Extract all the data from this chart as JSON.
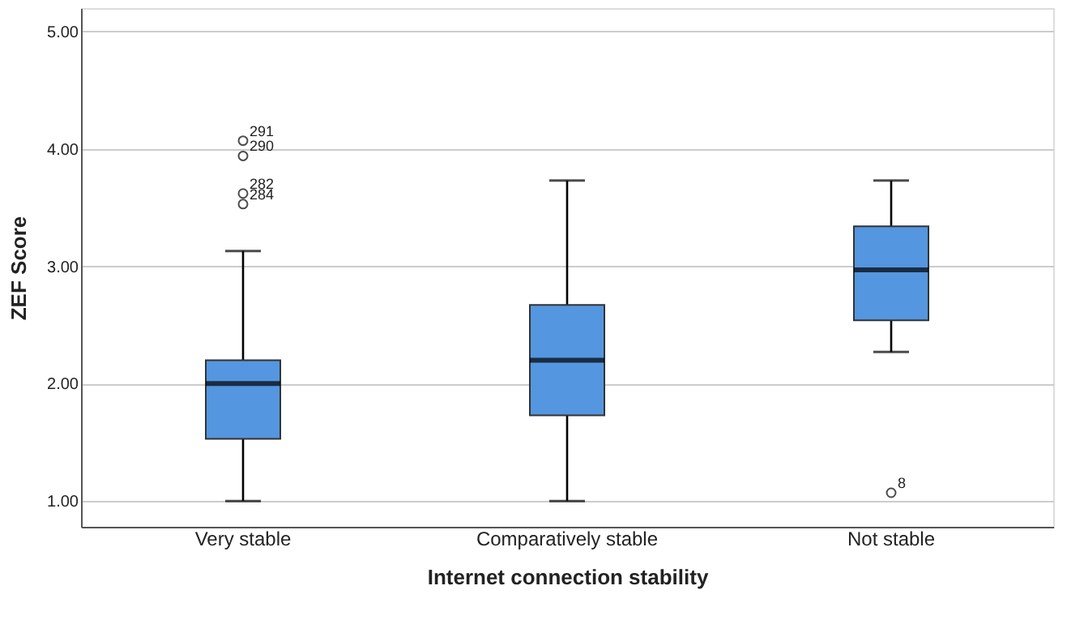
{
  "chart_data": {
    "type": "box",
    "xlabel": "Internet connection stability",
    "ylabel": "ZEF Score",
    "categories": [
      "Very stable",
      "Comparatively stable",
      "Not stable"
    ],
    "color": "#5596e0",
    "boxes": [
      {
        "low": 1.0,
        "q1": 1.53,
        "median": 2.0,
        "q3": 2.2,
        "high": 3.13,
        "outliers": [
          4.07,
          3.94,
          3.62,
          3.53
        ]
      },
      {
        "low": 1.0,
        "q1": 1.73,
        "median": 2.2,
        "q3": 2.67,
        "high": 3.73
      },
      {
        "low": 2.27,
        "q1": 2.54,
        "median": 2.97,
        "q3": 3.34,
        "high": 3.73,
        "outliers": [
          1.07
        ]
      }
    ],
    "annotations": [
      "291",
      "290",
      "282",
      "284",
      "8"
    ],
    "ylim": [
      0.78,
      5.2
    ],
    "yticks": [
      {
        "value": 1,
        "label": "1.00"
      },
      {
        "value": 2,
        "label": "2.00"
      },
      {
        "value": 3,
        "label": "3.00"
      },
      {
        "value": 4,
        "label": "4.00"
      },
      {
        "value": 5,
        "label": "5.00"
      }
    ],
    "grid": "y"
  }
}
